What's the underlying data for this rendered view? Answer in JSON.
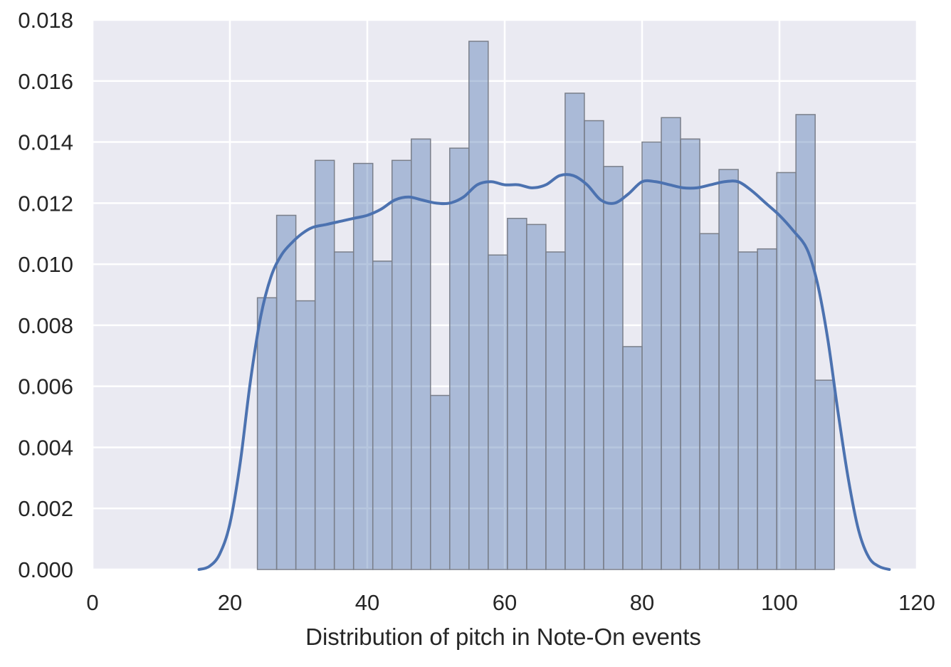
{
  "chart_data": {
    "type": "bar",
    "xlabel": "Distribution of pitch in Note-On events",
    "ylabel": "",
    "xlim": [
      0,
      120
    ],
    "ylim": [
      0,
      0.018
    ],
    "xticks": [
      "0",
      "20",
      "40",
      "60",
      "80",
      "100",
      "120"
    ],
    "yticks": [
      "0.000",
      "0.002",
      "0.004",
      "0.006",
      "0.008",
      "0.010",
      "0.012",
      "0.014",
      "0.016",
      "0.018"
    ],
    "grid": true,
    "histogram": {
      "bin_start": 24,
      "bin_width": 2.8,
      "values": [
        0.0089,
        0.0116,
        0.0088,
        0.0134,
        0.0104,
        0.0133,
        0.0101,
        0.0134,
        0.0141,
        0.0057,
        0.0138,
        0.0173,
        0.0103,
        0.0115,
        0.0113,
        0.0104,
        0.0156,
        0.0147,
        0.0132,
        0.0073,
        0.014,
        0.0148,
        0.0141,
        0.011,
        0.0131,
        0.0104,
        0.0105,
        0.013,
        0.0149,
        0.0062
      ]
    },
    "kde": {
      "x": [
        15.5,
        17,
        18.5,
        20,
        21.5,
        23,
        24.5,
        26,
        27.5,
        29,
        30.5,
        32,
        34,
        36,
        38,
        40,
        42,
        44,
        46,
        48,
        50,
        52,
        54,
        56,
        58,
        60,
        62,
        64,
        66,
        68,
        70,
        72,
        74,
        76,
        78,
        80,
        82,
        84,
        86,
        88,
        90,
        92,
        94,
        96,
        98,
        100,
        102,
        104,
        105.5,
        107,
        108.5,
        110,
        111.5,
        113,
        114.5,
        116
      ],
      "y": [
        0.0,
        0.0001,
        0.0005,
        0.0015,
        0.0035,
        0.0062,
        0.0083,
        0.0096,
        0.0103,
        0.0107,
        0.011,
        0.0112,
        0.0113,
        0.0114,
        0.0115,
        0.0116,
        0.0118,
        0.0121,
        0.0122,
        0.0121,
        0.012,
        0.012,
        0.0122,
        0.0126,
        0.0127,
        0.0126,
        0.0126,
        0.0125,
        0.0126,
        0.0129,
        0.0129,
        0.0126,
        0.0121,
        0.012,
        0.0123,
        0.0127,
        0.0127,
        0.0126,
        0.0125,
        0.0125,
        0.0126,
        0.0127,
        0.0127,
        0.0124,
        0.012,
        0.0116,
        0.0111,
        0.0105,
        0.0094,
        0.0076,
        0.0052,
        0.003,
        0.0013,
        0.0004,
        0.0001,
        0.0
      ]
    },
    "colors": {
      "background": "#eaeaf2",
      "grid": "#ffffff",
      "bar_fill": "#4c72b0",
      "bar_fill_opacity": 0.4,
      "bar_edge": "#7a7f8a",
      "kde_line": "#4c72b0"
    }
  }
}
